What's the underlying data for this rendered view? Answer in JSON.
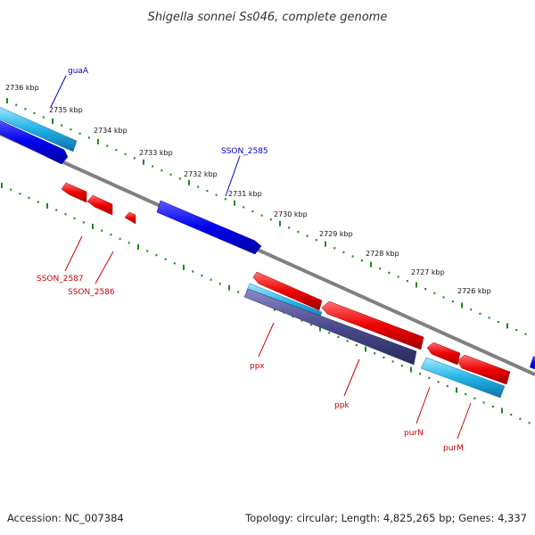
{
  "title": "Shigella sonnei Ss046, complete genome",
  "footer": {
    "accession": "Accession: NC_007384",
    "summary": "Topology: circular; Length: 4,825,265 bp; Genes: 4,337"
  },
  "colors": {
    "backbone": "#808080",
    "tick_green": "#1a8a1a",
    "forward_cds": "#0000ee",
    "forward_rna": "#22b4e6",
    "reverse_cds": "#ee0000",
    "reverse_other": "#4a4a8c",
    "label_forward": "#0000cc",
    "label_reverse": "#cc0000"
  },
  "scale_labels": [
    "2736 kbp",
    "2735 kbp",
    "2734 kbp",
    "2733 kbp",
    "2732 kbp",
    "2731 kbp",
    "2730 kbp",
    "2729 kbp",
    "2728 kbp",
    "2727 kbp",
    "2726 kbp"
  ],
  "gene_labels": {
    "forward": [
      "guaA",
      "SSON_2585"
    ],
    "reverse": [
      "SSON_2587",
      "SSON_2586",
      "ppx",
      "ppk",
      "purN",
      "purM"
    ]
  }
}
